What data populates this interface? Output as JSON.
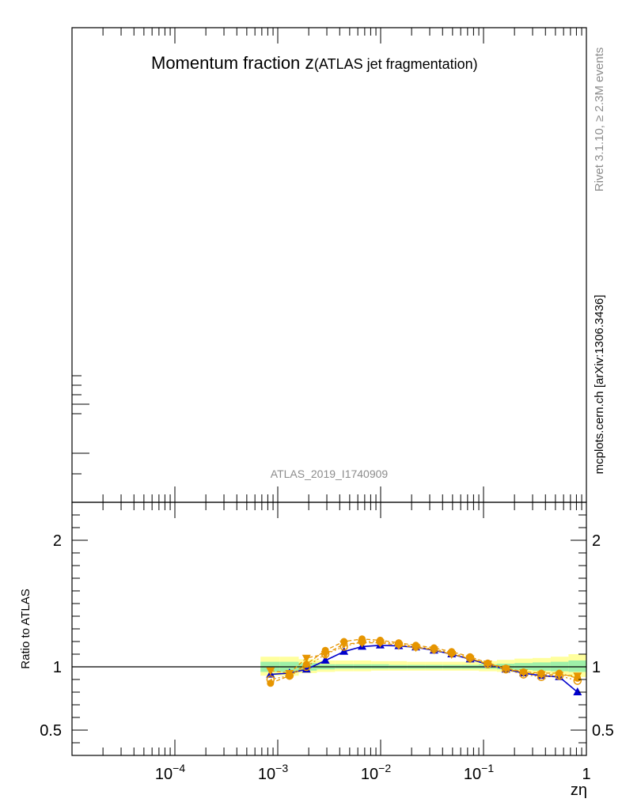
{
  "title_main": "Momentum fraction ",
  "title_var": "z",
  "title_paren": "(ATLAS jet fragmentation)",
  "analysis_label": "ATLAS_2019_I1740909",
  "side_version": "Rivet 3.1.10, ≥ 2.3M events",
  "side_site": "mcplots.cern.ch [arXiv:1306.3436]",
  "chart_data": {
    "type": "scatter",
    "xlabel": "zη",
    "ylabel": "Ratio to ATLAS",
    "x_scale": "log",
    "xlim": [
      1e-05,
      1
    ],
    "ratio_ylim": [
      0.3,
      2.3
    ],
    "x_tick_labels": [
      {
        "value": 0.0001,
        "base": "10",
        "exp": "−4"
      },
      {
        "value": 0.001,
        "base": "10",
        "exp": "−3"
      },
      {
        "value": 0.01,
        "base": "10",
        "exp": "−2"
      },
      {
        "value": 0.1,
        "base": "10",
        "exp": "−1"
      },
      {
        "value": 1,
        "base": "1",
        "exp": ""
      }
    ],
    "y_tick_labels": [
      {
        "value": 2,
        "label": "2"
      },
      {
        "value": 1,
        "label": "1"
      },
      {
        "value": 0.5,
        "label": "0.5"
      }
    ],
    "reference_line": 1,
    "x": [
      0.00085,
      0.0013,
      0.0019,
      0.0029,
      0.0044,
      0.0066,
      0.0099,
      0.015,
      0.022,
      0.033,
      0.049,
      0.074,
      0.11,
      0.165,
      0.245,
      0.365,
      0.545,
      0.82
    ],
    "band_edges": [
      0.00068,
      0.00105,
      0.0016,
      0.0024,
      0.0036,
      0.0054,
      0.0081,
      0.0121,
      0.018,
      0.027,
      0.04,
      0.06,
      0.09,
      0.135,
      0.2,
      0.3,
      0.45,
      0.67,
      1.0
    ],
    "band_inner": [
      [
        0.96,
        1.04
      ],
      [
        0.96,
        1.04
      ],
      [
        0.97,
        1.03
      ],
      [
        0.98,
        1.02
      ],
      [
        0.985,
        1.02
      ],
      [
        0.985,
        1.02
      ],
      [
        0.985,
        1.02
      ],
      [
        0.985,
        1.015
      ],
      [
        0.985,
        1.015
      ],
      [
        0.985,
        1.015
      ],
      [
        0.985,
        1.015
      ],
      [
        0.985,
        1.015
      ],
      [
        0.985,
        1.02
      ],
      [
        0.98,
        1.025
      ],
      [
        0.975,
        1.03
      ],
      [
        0.97,
        1.035
      ],
      [
        0.965,
        1.04
      ],
      [
        0.96,
        1.05
      ]
    ],
    "band_outer": [
      [
        0.93,
        1.08
      ],
      [
        0.93,
        1.08
      ],
      [
        0.95,
        1.06
      ],
      [
        0.96,
        1.05
      ],
      [
        0.965,
        1.05
      ],
      [
        0.965,
        1.05
      ],
      [
        0.97,
        1.045
      ],
      [
        0.97,
        1.045
      ],
      [
        0.97,
        1.04
      ],
      [
        0.97,
        1.04
      ],
      [
        0.97,
        1.04
      ],
      [
        0.97,
        1.04
      ],
      [
        0.965,
        1.045
      ],
      [
        0.96,
        1.055
      ],
      [
        0.955,
        1.065
      ],
      [
        0.95,
        1.07
      ],
      [
        0.94,
        1.08
      ],
      [
        0.92,
        1.1
      ]
    ],
    "series": [
      {
        "values": [
          0.94,
          0.95,
          0.98,
          1.05,
          1.12,
          1.16,
          1.17,
          1.165,
          1.155,
          1.13,
          1.1,
          1.06,
          1.02,
          0.98,
          0.95,
          0.93,
          0.92,
          0.8
        ],
        "color": "#0000cc",
        "marker": "triangle-up",
        "line": "solid"
      },
      {
        "values": [
          0.97,
          0.95,
          1.07,
          1.1,
          1.18,
          1.19,
          1.19,
          1.17,
          1.155,
          1.135,
          1.1,
          1.065,
          1.025,
          0.985,
          0.955,
          0.94,
          0.935,
          0.93
        ],
        "color": "#e69500",
        "marker": "triangle-down",
        "line": "dashed"
      },
      {
        "values": [
          0.9,
          0.93,
          1.0,
          1.1,
          1.16,
          1.2,
          1.2,
          1.18,
          1.16,
          1.14,
          1.11,
          1.07,
          1.02,
          0.98,
          0.94,
          0.92,
          0.93,
          0.89
        ],
        "color": "#e69500",
        "marker": "circle-open",
        "line": "dotted"
      },
      {
        "values": [
          0.87,
          0.93,
          1.02,
          1.13,
          1.2,
          1.22,
          1.21,
          1.19,
          1.17,
          1.15,
          1.12,
          1.08,
          1.03,
          0.99,
          0.96,
          0.95,
          0.95,
          0.91
        ],
        "color": "#e69500",
        "marker": "circle-filled",
        "line": "dashed"
      }
    ]
  }
}
